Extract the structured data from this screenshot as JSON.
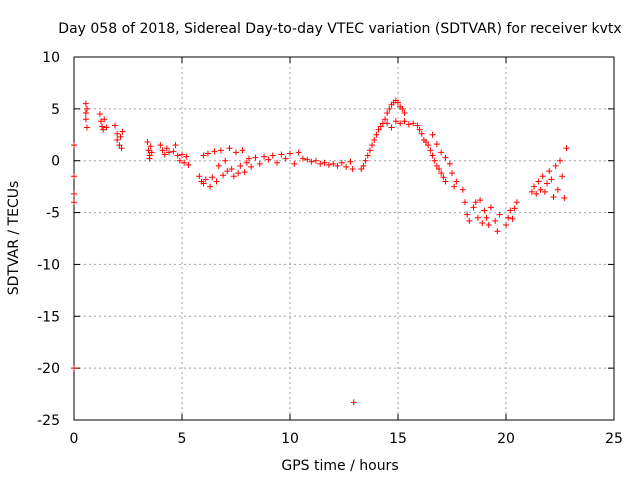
{
  "chart_data": {
    "type": "scatter",
    "title": "Day 058 of 2018, Sidereal Day-to-day VTEC variation (SDTVAR) for receiver kvtx",
    "xlabel": "GPS time / hours",
    "ylabel": "SDTVAR / TECUs",
    "xlim": [
      0,
      25
    ],
    "ylim": [
      -25,
      10
    ],
    "xticks": [
      0,
      5,
      10,
      15,
      20,
      25
    ],
    "yticks": [
      -25,
      -20,
      -15,
      -10,
      -5,
      0,
      5,
      10
    ],
    "grid": true,
    "marker": "+",
    "series": [
      {
        "name": "SDTVAR",
        "color": "#ff0000",
        "points": [
          [
            0.0,
            1.5
          ],
          [
            0.0,
            -1.5
          ],
          [
            0.0,
            -3.2
          ],
          [
            0.0,
            -4.0
          ],
          [
            0.0,
            -20.0
          ],
          [
            0.55,
            5.5
          ],
          [
            0.55,
            4.6
          ],
          [
            0.55,
            4.0
          ],
          [
            0.6,
            3.2
          ],
          [
            0.6,
            5.0
          ],
          [
            1.2,
            4.5
          ],
          [
            1.25,
            3.8
          ],
          [
            1.3,
            3.3
          ],
          [
            1.35,
            3.0
          ],
          [
            1.4,
            4.0
          ],
          [
            1.5,
            3.2
          ],
          [
            1.9,
            3.4
          ],
          [
            2.0,
            2.6
          ],
          [
            2.0,
            2.0
          ],
          [
            2.1,
            1.5
          ],
          [
            2.15,
            2.3
          ],
          [
            2.2,
            1.2
          ],
          [
            2.25,
            2.8
          ],
          [
            3.4,
            1.8
          ],
          [
            3.45,
            1.0
          ],
          [
            3.5,
            0.5
          ],
          [
            3.5,
            0.2
          ],
          [
            3.55,
            1.4
          ],
          [
            3.6,
            0.8
          ],
          [
            4.0,
            1.5
          ],
          [
            4.1,
            1.0
          ],
          [
            4.2,
            0.6
          ],
          [
            4.3,
            1.2
          ],
          [
            4.4,
            0.8
          ],
          [
            4.6,
            0.9
          ],
          [
            4.7,
            1.5
          ],
          [
            4.8,
            0.5
          ],
          [
            4.9,
            0.0
          ],
          [
            5.0,
            0.6
          ],
          [
            5.1,
            -0.2
          ],
          [
            5.2,
            0.4
          ],
          [
            5.3,
            -0.4
          ],
          [
            5.8,
            -1.5
          ],
          [
            5.9,
            -2.0
          ],
          [
            6.0,
            0.5
          ],
          [
            6.0,
            -2.2
          ],
          [
            6.1,
            -1.8
          ],
          [
            6.2,
            0.7
          ],
          [
            6.3,
            -2.5
          ],
          [
            6.4,
            -1.6
          ],
          [
            6.5,
            0.9
          ],
          [
            6.6,
            -2.0
          ],
          [
            6.7,
            -0.5
          ],
          [
            6.8,
            1.0
          ],
          [
            6.9,
            -1.4
          ],
          [
            7.0,
            0.0
          ],
          [
            7.1,
            -1.0
          ],
          [
            7.2,
            1.2
          ],
          [
            7.3,
            -0.8
          ],
          [
            7.4,
            -1.5
          ],
          [
            7.5,
            0.8
          ],
          [
            7.6,
            -1.2
          ],
          [
            7.7,
            -0.5
          ],
          [
            7.8,
            1.0
          ],
          [
            7.9,
            -1.1
          ],
          [
            8.0,
            -0.2
          ],
          [
            8.1,
            0.2
          ],
          [
            8.2,
            -0.6
          ],
          [
            8.4,
            0.3
          ],
          [
            8.6,
            -0.3
          ],
          [
            8.8,
            0.4
          ],
          [
            9.0,
            0.1
          ],
          [
            9.2,
            0.5
          ],
          [
            9.4,
            -0.2
          ],
          [
            9.6,
            0.6
          ],
          [
            9.8,
            0.2
          ],
          [
            10.0,
            0.7
          ],
          [
            10.2,
            -0.3
          ],
          [
            10.4,
            0.8
          ],
          [
            10.6,
            0.2
          ],
          [
            10.8,
            0.1
          ],
          [
            11.0,
            -0.1
          ],
          [
            11.2,
            0.0
          ],
          [
            11.4,
            -0.3
          ],
          [
            11.6,
            -0.2
          ],
          [
            11.8,
            -0.4
          ],
          [
            12.0,
            -0.3
          ],
          [
            12.2,
            -0.5
          ],
          [
            12.4,
            -0.2
          ],
          [
            12.6,
            -0.6
          ],
          [
            12.8,
            -0.1
          ],
          [
            12.9,
            -0.8
          ],
          [
            12.95,
            -23.3
          ],
          [
            13.3,
            -0.8
          ],
          [
            13.4,
            -0.5
          ],
          [
            13.5,
            0.0
          ],
          [
            13.6,
            0.5
          ],
          [
            13.7,
            1.0
          ],
          [
            13.8,
            1.5
          ],
          [
            13.9,
            2.0
          ],
          [
            14.0,
            2.5
          ],
          [
            14.1,
            3.0
          ],
          [
            14.2,
            3.3
          ],
          [
            14.3,
            3.6
          ],
          [
            14.4,
            4.0
          ],
          [
            14.5,
            4.6
          ],
          [
            14.6,
            5.0
          ],
          [
            14.7,
            5.4
          ],
          [
            14.8,
            5.6
          ],
          [
            14.9,
            5.8
          ],
          [
            15.0,
            5.6
          ],
          [
            15.1,
            5.2
          ],
          [
            15.2,
            5.0
          ],
          [
            15.3,
            4.6
          ],
          [
            14.5,
            3.6
          ],
          [
            14.7,
            3.2
          ],
          [
            14.9,
            3.8
          ],
          [
            15.1,
            3.6
          ],
          [
            15.3,
            3.8
          ],
          [
            15.5,
            3.5
          ],
          [
            15.7,
            3.6
          ],
          [
            15.9,
            3.4
          ],
          [
            16.0,
            3.0
          ],
          [
            16.1,
            2.6
          ],
          [
            16.2,
            2.0
          ],
          [
            16.3,
            1.8
          ],
          [
            16.4,
            1.5
          ],
          [
            16.5,
            1.0
          ],
          [
            16.6,
            0.5
          ],
          [
            16.7,
            0.0
          ],
          [
            16.8,
            -0.5
          ],
          [
            16.9,
            -0.8
          ],
          [
            17.0,
            -1.2
          ],
          [
            17.1,
            -1.6
          ],
          [
            17.2,
            -2.0
          ],
          [
            16.6,
            2.5
          ],
          [
            16.8,
            1.6
          ],
          [
            17.0,
            0.8
          ],
          [
            17.2,
            0.3
          ],
          [
            17.4,
            -0.3
          ],
          [
            17.5,
            -1.2
          ],
          [
            17.6,
            -2.5
          ],
          [
            17.7,
            -2.0
          ],
          [
            18.0,
            -2.8
          ],
          [
            18.1,
            -4.0
          ],
          [
            18.2,
            -5.2
          ],
          [
            18.3,
            -5.8
          ],
          [
            18.5,
            -4.5
          ],
          [
            18.6,
            -4.0
          ],
          [
            18.7,
            -5.5
          ],
          [
            18.8,
            -3.8
          ],
          [
            18.9,
            -6.0
          ],
          [
            19.0,
            -4.8
          ],
          [
            19.1,
            -5.5
          ],
          [
            19.2,
            -6.2
          ],
          [
            19.3,
            -4.5
          ],
          [
            19.5,
            -5.8
          ],
          [
            19.6,
            -6.8
          ],
          [
            19.7,
            -5.2
          ],
          [
            20.0,
            -6.2
          ],
          [
            20.1,
            -5.5
          ],
          [
            20.2,
            -4.8
          ],
          [
            20.3,
            -5.6
          ],
          [
            20.4,
            -4.6
          ],
          [
            20.5,
            -4.0
          ],
          [
            21.2,
            -3.0
          ],
          [
            21.3,
            -2.5
          ],
          [
            21.4,
            -3.2
          ],
          [
            21.5,
            -2.0
          ],
          [
            21.6,
            -2.8
          ],
          [
            21.7,
            -1.5
          ],
          [
            21.8,
            -3.0
          ],
          [
            21.9,
            -2.2
          ],
          [
            22.0,
            -1.0
          ],
          [
            22.1,
            -1.8
          ],
          [
            22.2,
            -3.5
          ],
          [
            22.3,
            -0.5
          ],
          [
            22.4,
            -2.8
          ],
          [
            22.5,
            0.0
          ],
          [
            22.6,
            -1.5
          ],
          [
            22.7,
            -3.6
          ],
          [
            22.8,
            1.2
          ]
        ]
      }
    ]
  }
}
